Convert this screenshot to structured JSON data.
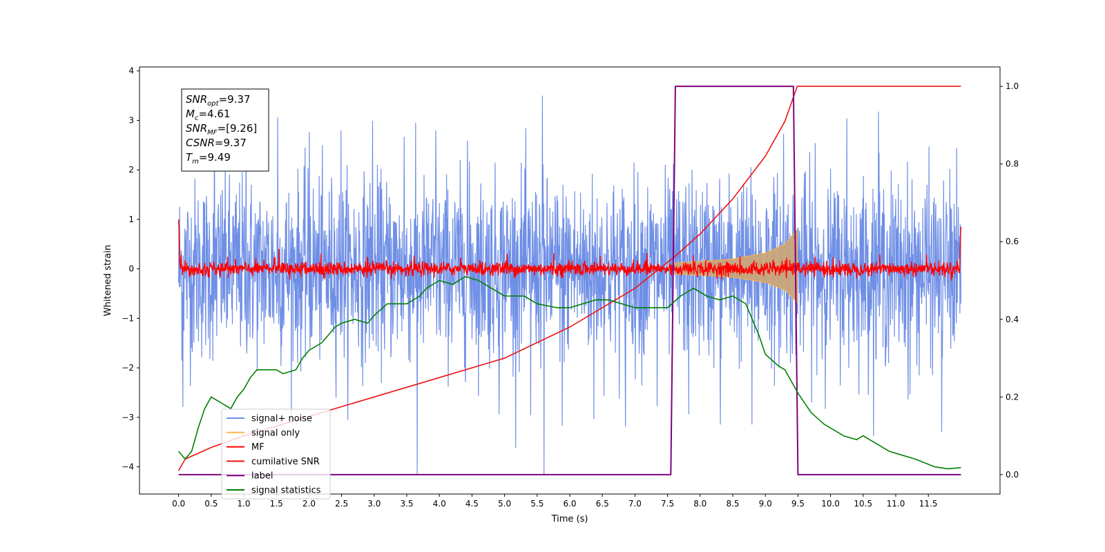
{
  "chart_data": {
    "type": "line",
    "xlabel": "Time (s)",
    "ylabel": "Whitened strain",
    "xlim": [
      -0.6,
      12.6
    ],
    "ylim": [
      -4.55,
      4.08
    ],
    "y2lim": [
      -0.05,
      1.05
    ],
    "x_ticks": [
      "0.0",
      "0.5",
      "1.0",
      "1.5",
      "2.0",
      "2.5",
      "3.0",
      "3.5",
      "4.0",
      "4.5",
      "5.0",
      "5.5",
      "6.0",
      "6.5",
      "7.0",
      "7.5",
      "8.0",
      "8.5",
      "9.0",
      "9.5",
      "10.0",
      "10.5",
      "11.0",
      "11.5"
    ],
    "y_ticks": [
      "4",
      "3",
      "2",
      "1",
      "0",
      "−1",
      "−2",
      "−3",
      "−4"
    ],
    "y2_ticks": [
      "1.0",
      "0.8",
      "0.6",
      "0.4",
      "0.2",
      "0.0"
    ],
    "annotation": [
      {
        "name": "SNR",
        "sub": "opt",
        "value": "=9.37"
      },
      {
        "name": "M",
        "sub": "c",
        "value": "=4.61"
      },
      {
        "name": "SNR",
        "sub": "MF",
        "value": "=[9.26]"
      },
      {
        "name": "CSNR",
        "sub": "",
        "value": "=9.37"
      },
      {
        "name": "T",
        "sub": "m",
        "value": "=9.49"
      }
    ],
    "legend": {
      "placement": "lower-left",
      "entries": [
        "signal+ noise",
        "signal only",
        "MF",
        "cumilative SNR",
        "label",
        "signal statistics"
      ]
    },
    "colors": {
      "noise": "#6f8fe6",
      "signal": "#ffb347",
      "mf": "#ff0000",
      "csnr": "#ee1111",
      "label": "#7f007f",
      "stats": "#008000"
    },
    "series": [
      {
        "name": "signal+ noise",
        "axis": "left",
        "x_range": [
          0.0,
          12.0
        ],
        "typical_amplitude": 1.4,
        "max_peak": 3.5,
        "min_peak": -4.15
      },
      {
        "name": "signal only",
        "axis": "left",
        "x_range": [
          7.6,
          9.49
        ],
        "envelope": [
          [
            7.6,
            0.12
          ],
          [
            8.0,
            0.15
          ],
          [
            8.5,
            0.2
          ],
          [
            9.0,
            0.32
          ],
          [
            9.3,
            0.5
          ],
          [
            9.49,
            0.8
          ]
        ]
      },
      {
        "name": "MF",
        "axis": "left",
        "x_range": [
          0.0,
          12.0
        ],
        "typical_amplitude": 0.12,
        "max_peak": 0.4,
        "start_value": 1.0,
        "end_value": 0.85
      },
      {
        "name": "cumilative SNR",
        "axis": "right",
        "points": [
          [
            0.0,
            0.01
          ],
          [
            0.1,
            0.04
          ],
          [
            0.5,
            0.07
          ],
          [
            1.0,
            0.1
          ],
          [
            2.0,
            0.15
          ],
          [
            3.0,
            0.2
          ],
          [
            4.0,
            0.25
          ],
          [
            5.0,
            0.3
          ],
          [
            6.0,
            0.38
          ],
          [
            7.0,
            0.48
          ],
          [
            7.6,
            0.56
          ],
          [
            8.0,
            0.62
          ],
          [
            8.5,
            0.71
          ],
          [
            9.0,
            0.82
          ],
          [
            9.3,
            0.91
          ],
          [
            9.49,
            1.0
          ],
          [
            12.0,
            1.0
          ]
        ]
      },
      {
        "name": "label",
        "axis": "right",
        "points": [
          [
            0.0,
            0.0
          ],
          [
            7.55,
            0.0
          ],
          [
            7.62,
            1.0
          ],
          [
            9.43,
            1.0
          ],
          [
            9.5,
            0.0
          ],
          [
            12.0,
            0.0
          ]
        ]
      },
      {
        "name": "signal statistics",
        "axis": "right",
        "points": [
          [
            0.0,
            0.06
          ],
          [
            0.1,
            0.04
          ],
          [
            0.2,
            0.06
          ],
          [
            0.3,
            0.12
          ],
          [
            0.4,
            0.17
          ],
          [
            0.5,
            0.2
          ],
          [
            0.6,
            0.19
          ],
          [
            0.7,
            0.18
          ],
          [
            0.8,
            0.17
          ],
          [
            0.9,
            0.2
          ],
          [
            1.0,
            0.22
          ],
          [
            1.1,
            0.25
          ],
          [
            1.2,
            0.27
          ],
          [
            1.3,
            0.27
          ],
          [
            1.5,
            0.27
          ],
          [
            1.6,
            0.26
          ],
          [
            1.8,
            0.27
          ],
          [
            1.9,
            0.3
          ],
          [
            2.0,
            0.32
          ],
          [
            2.2,
            0.34
          ],
          [
            2.4,
            0.38
          ],
          [
            2.5,
            0.39
          ],
          [
            2.7,
            0.4
          ],
          [
            2.9,
            0.39
          ],
          [
            3.0,
            0.41
          ],
          [
            3.2,
            0.44
          ],
          [
            3.5,
            0.44
          ],
          [
            3.7,
            0.46
          ],
          [
            3.8,
            0.48
          ],
          [
            4.0,
            0.5
          ],
          [
            4.2,
            0.49
          ],
          [
            4.4,
            0.51
          ],
          [
            4.6,
            0.5
          ],
          [
            4.8,
            0.48
          ],
          [
            5.0,
            0.46
          ],
          [
            5.3,
            0.46
          ],
          [
            5.5,
            0.44
          ],
          [
            5.8,
            0.43
          ],
          [
            6.0,
            0.43
          ],
          [
            6.2,
            0.44
          ],
          [
            6.4,
            0.45
          ],
          [
            6.6,
            0.45
          ],
          [
            6.8,
            0.44
          ],
          [
            7.0,
            0.43
          ],
          [
            7.3,
            0.43
          ],
          [
            7.5,
            0.43
          ],
          [
            7.7,
            0.46
          ],
          [
            7.9,
            0.48
          ],
          [
            8.1,
            0.46
          ],
          [
            8.3,
            0.45
          ],
          [
            8.5,
            0.46
          ],
          [
            8.7,
            0.44
          ],
          [
            8.9,
            0.36
          ],
          [
            9.0,
            0.31
          ],
          [
            9.2,
            0.28
          ],
          [
            9.3,
            0.27
          ],
          [
            9.5,
            0.21
          ],
          [
            9.7,
            0.16
          ],
          [
            9.9,
            0.13
          ],
          [
            10.0,
            0.12
          ],
          [
            10.2,
            0.1
          ],
          [
            10.4,
            0.09
          ],
          [
            10.5,
            0.1
          ],
          [
            10.7,
            0.08
          ],
          [
            10.9,
            0.06
          ],
          [
            11.1,
            0.05
          ],
          [
            11.3,
            0.04
          ],
          [
            11.6,
            0.02
          ],
          [
            11.8,
            0.015
          ],
          [
            12.0,
            0.018
          ]
        ]
      }
    ]
  }
}
